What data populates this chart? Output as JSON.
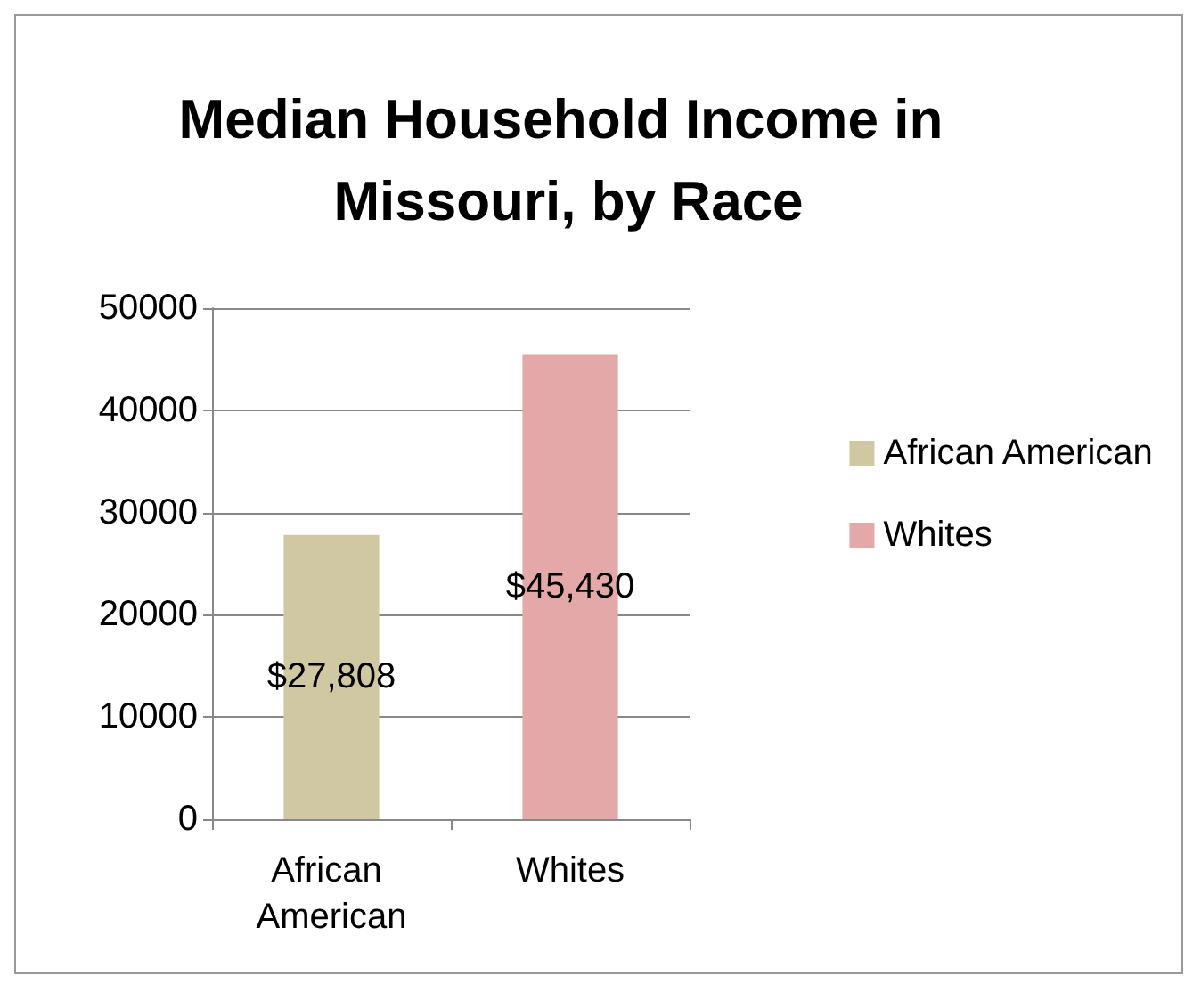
{
  "chart_data": {
    "type": "bar",
    "title": "Median Household Income in Missouri, by Race",
    "categories": [
      "African American",
      "Whites"
    ],
    "series": [
      {
        "name": "African American",
        "color": "#cfc8a2",
        "values": [
          27808,
          null
        ],
        "value_labels": [
          "$27,808",
          null
        ]
      },
      {
        "name": "Whites",
        "color": "#e3a8a7",
        "values": [
          null,
          45430
        ],
        "value_labels": [
          null,
          "$45,430"
        ]
      }
    ],
    "ylim": [
      0,
      50000
    ],
    "yticks": [
      0,
      10000,
      20000,
      30000,
      40000,
      50000
    ],
    "grid": "y",
    "legend": "right"
  }
}
